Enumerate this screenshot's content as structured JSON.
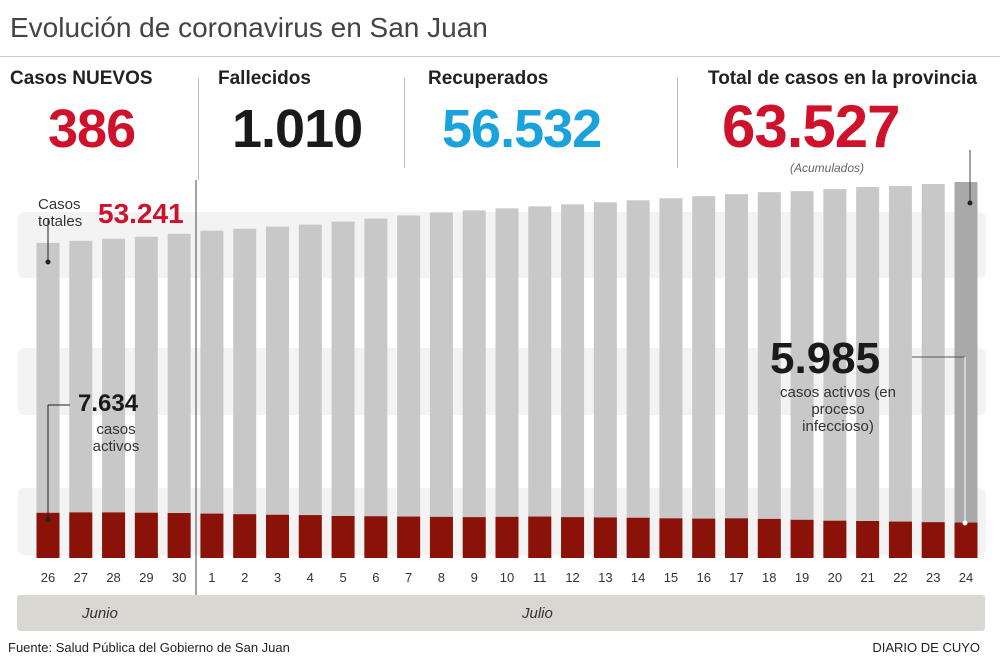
{
  "title": "Evolución de coronavirus en San Juan",
  "stats": {
    "nuevos": {
      "label": "Casos NUEVOS",
      "value": "386",
      "color": "#d0112b"
    },
    "fallecidos": {
      "label": "Fallecidos",
      "value": "1.010",
      "color": "#1a1a1a"
    },
    "recuperados": {
      "label": "Recuperados",
      "value": "56.532",
      "color": "#1aa2dc"
    },
    "total": {
      "label": "Total de casos en la provincia",
      "value": "63.527",
      "note": "(Acumulados)",
      "color": "#d0112b"
    }
  },
  "annotations": {
    "casos_totales_label": "Casos totales",
    "casos_totales_value": "53.241",
    "activos_start_value": "7.634",
    "activos_start_label": "casos activos",
    "activos_end_value": "5.985",
    "activos_end_label": "casos activos (en proceso infeccioso)"
  },
  "months": {
    "junio": "Junio",
    "julio": "Julio"
  },
  "footer": {
    "source": "Fuente: Salud Pública del Gobierno de San Juan",
    "brand": "DIARIO DE CUYO"
  },
  "chart_data": {
    "type": "bar",
    "stacked": "overlay",
    "categories": [
      "26",
      "27",
      "28",
      "29",
      "30",
      "1",
      "2",
      "3",
      "4",
      "5",
      "6",
      "7",
      "8",
      "9",
      "10",
      "11",
      "12",
      "13",
      "14",
      "15",
      "16",
      "17",
      "18",
      "19",
      "20",
      "21",
      "22",
      "23",
      "24"
    ],
    "series": [
      {
        "name": "Casos totales",
        "color": "#c8c8c8",
        "values": [
          53241,
          53580,
          53930,
          54270,
          54780,
          55300,
          55640,
          55980,
          56330,
          56840,
          57350,
          57870,
          58380,
          58730,
          59070,
          59410,
          59750,
          60100,
          60440,
          60780,
          61130,
          61470,
          61810,
          61980,
          62330,
          62670,
          62840,
          63180,
          63527
        ]
      },
      {
        "name": "casos activos",
        "color": "#8a1208",
        "values": [
          7634,
          7700,
          7700,
          7650,
          7600,
          7500,
          7400,
          7300,
          7250,
          7100,
          7050,
          7000,
          6950,
          6900,
          6950,
          7000,
          6900,
          6850,
          6800,
          6700,
          6650,
          6700,
          6600,
          6450,
          6300,
          6250,
          6150,
          6050,
          5985
        ]
      }
    ],
    "highlight_last_color": "#a9a9a9",
    "ylim": [
      0,
      63527
    ],
    "grid": false
  }
}
